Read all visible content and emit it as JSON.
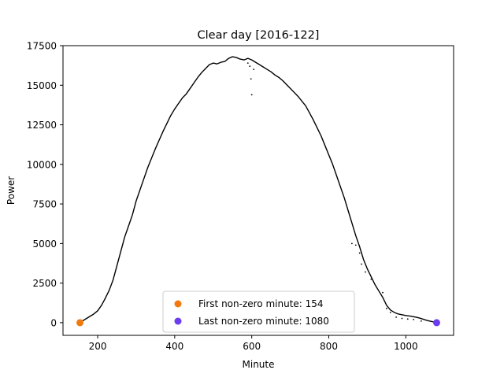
{
  "chart_data": {
    "type": "scatter",
    "title": "Clear day [2016-122]",
    "xlabel": "Minute",
    "ylabel": "Power",
    "xlim": [
      110,
      1124
    ],
    "ylim": [
      -800,
      17500
    ],
    "xticks": [
      200,
      400,
      600,
      800,
      1000
    ],
    "yticks": [
      0,
      2500,
      5000,
      7500,
      10000,
      12500,
      15000,
      17500
    ],
    "grid": false,
    "legend_position": "lower center",
    "series": [
      {
        "kind": "curve",
        "color": "#000000",
        "points": [
          [
            154,
            50
          ],
          [
            160,
            100
          ],
          [
            170,
            250
          ],
          [
            180,
            400
          ],
          [
            190,
            550
          ],
          [
            200,
            750
          ],
          [
            210,
            1100
          ],
          [
            220,
            1550
          ],
          [
            230,
            2050
          ],
          [
            240,
            2700
          ],
          [
            250,
            3600
          ],
          [
            260,
            4500
          ],
          [
            270,
            5400
          ],
          [
            280,
            6100
          ],
          [
            290,
            6800
          ],
          [
            300,
            7700
          ],
          [
            310,
            8400
          ],
          [
            320,
            9100
          ],
          [
            330,
            9800
          ],
          [
            340,
            10400
          ],
          [
            350,
            11000
          ],
          [
            360,
            11550
          ],
          [
            370,
            12100
          ],
          [
            380,
            12600
          ],
          [
            390,
            13100
          ],
          [
            400,
            13500
          ],
          [
            410,
            13850
          ],
          [
            420,
            14200
          ],
          [
            430,
            14450
          ],
          [
            440,
            14800
          ],
          [
            450,
            15150
          ],
          [
            460,
            15500
          ],
          [
            470,
            15800
          ],
          [
            480,
            16050
          ],
          [
            490,
            16300
          ],
          [
            500,
            16400
          ],
          [
            510,
            16350
          ],
          [
            520,
            16450
          ],
          [
            530,
            16500
          ],
          [
            540,
            16700
          ],
          [
            550,
            16800
          ],
          [
            560,
            16750
          ],
          [
            570,
            16650
          ],
          [
            580,
            16600
          ],
          [
            590,
            16700
          ],
          [
            600,
            16600
          ],
          [
            610,
            16450
          ],
          [
            620,
            16300
          ],
          [
            630,
            16150
          ],
          [
            640,
            16000
          ],
          [
            650,
            15850
          ],
          [
            660,
            15650
          ],
          [
            670,
            15500
          ],
          [
            680,
            15300
          ],
          [
            690,
            15050
          ],
          [
            700,
            14800
          ],
          [
            710,
            14550
          ],
          [
            720,
            14300
          ],
          [
            730,
            14000
          ],
          [
            740,
            13700
          ],
          [
            750,
            13250
          ],
          [
            760,
            12800
          ],
          [
            770,
            12300
          ],
          [
            780,
            11800
          ],
          [
            790,
            11200
          ],
          [
            800,
            10600
          ],
          [
            810,
            10000
          ],
          [
            820,
            9300
          ],
          [
            830,
            8600
          ],
          [
            840,
            7900
          ],
          [
            850,
            7100
          ],
          [
            860,
            6300
          ],
          [
            870,
            5500
          ],
          [
            880,
            4800
          ],
          [
            890,
            4000
          ],
          [
            900,
            3400
          ],
          [
            910,
            2900
          ],
          [
            920,
            2400
          ],
          [
            930,
            2000
          ],
          [
            940,
            1600
          ],
          [
            950,
            1100
          ],
          [
            960,
            800
          ],
          [
            970,
            650
          ],
          [
            980,
            550
          ],
          [
            990,
            500
          ],
          [
            1000,
            450
          ],
          [
            1010,
            420
          ],
          [
            1020,
            380
          ],
          [
            1030,
            330
          ],
          [
            1040,
            260
          ],
          [
            1050,
            180
          ],
          [
            1060,
            110
          ],
          [
            1070,
            60
          ],
          [
            1080,
            20
          ]
        ]
      },
      {
        "kind": "outliers",
        "color": "#000000",
        "points": [
          [
            590,
            16400
          ],
          [
            595,
            16200
          ],
          [
            598,
            15400
          ],
          [
            600,
            14400
          ],
          [
            605,
            16000
          ],
          [
            860,
            5000
          ],
          [
            870,
            4900
          ],
          [
            880,
            4400
          ],
          [
            885,
            3700
          ],
          [
            895,
            3200
          ],
          [
            910,
            2750
          ],
          [
            940,
            1900
          ],
          [
            950,
            900
          ],
          [
            960,
            650
          ],
          [
            975,
            350
          ],
          [
            990,
            270
          ],
          [
            1005,
            230
          ],
          [
            1020,
            200
          ],
          [
            1040,
            100
          ]
        ]
      }
    ],
    "markers": [
      {
        "label": "First non-zero minute: 154",
        "x": 154,
        "y": 0,
        "color": "#f07a0e"
      },
      {
        "label": "Last non-zero minute: 1080",
        "x": 1080,
        "y": 0,
        "color": "#6b3cf0"
      }
    ]
  }
}
